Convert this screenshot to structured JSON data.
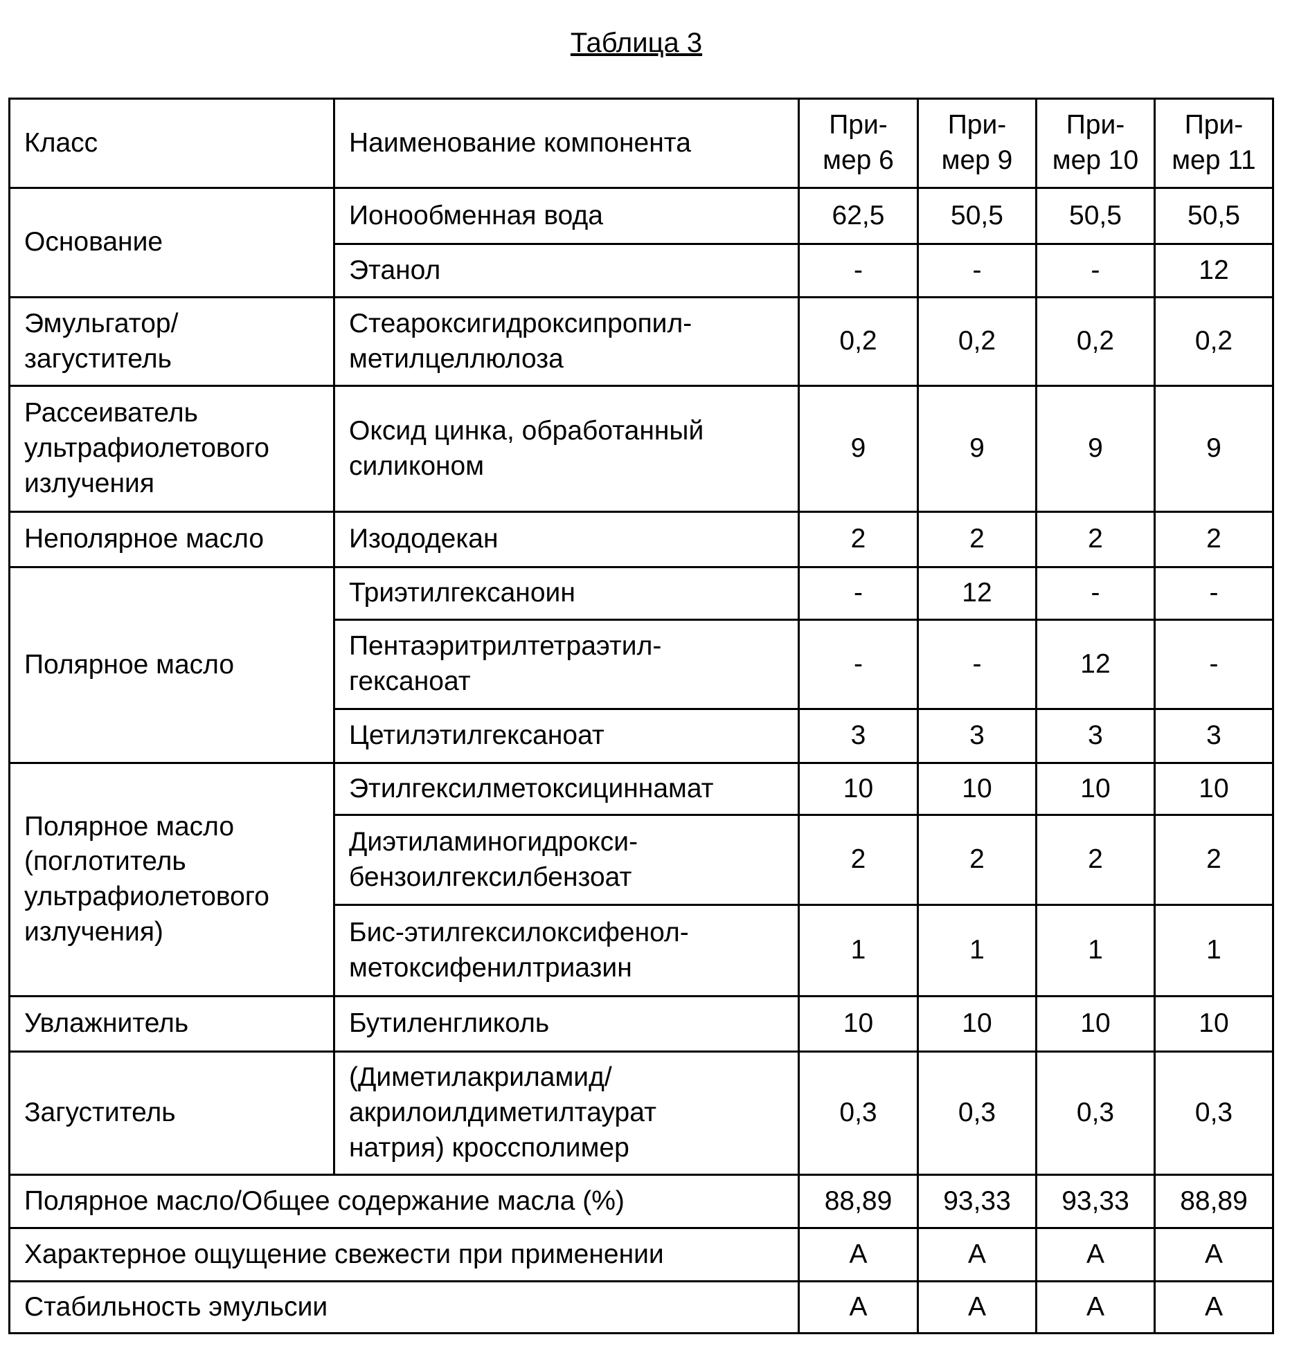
{
  "title": "Таблица 3",
  "header": {
    "class": "Класс",
    "component": "Наименование компонента",
    "examples": [
      "При-\nмер 6",
      "При-\nмер 9",
      "При-\nмер 10",
      "При-\nмер 11"
    ]
  },
  "groups": [
    {
      "class": "Основание",
      "rows": [
        {
          "name": "Ионообменная вода",
          "values": [
            "62,5",
            "50,5",
            "50,5",
            "50,5"
          ]
        },
        {
          "name": "Этанол",
          "values": [
            "-",
            "-",
            "-",
            "12"
          ]
        }
      ]
    },
    {
      "class": "Эмульгатор/\nзагуститель",
      "rows": [
        {
          "name": "Стеароксигидроксипропил-\nметилцеллюлоза",
          "values": [
            "0,2",
            "0,2",
            "0,2",
            "0,2"
          ]
        }
      ]
    },
    {
      "class": "Рассеиватель\nультрафиолетового\nизлучения",
      "rows": [
        {
          "name": "Оксид цинка, обработанный\nсиликоном",
          "values": [
            "9",
            "9",
            "9",
            "9"
          ]
        }
      ]
    },
    {
      "class": "Неполярное масло",
      "rows": [
        {
          "name": "Изододекан",
          "values": [
            "2",
            "2",
            "2",
            "2"
          ]
        }
      ]
    },
    {
      "class": "Полярное масло",
      "rows": [
        {
          "name": "Триэтилгексаноин",
          "values": [
            "-",
            "12",
            "-",
            "-"
          ]
        },
        {
          "name": "Пентаэритрилтетраэтил-\nгексаноат",
          "values": [
            "-",
            "-",
            "12",
            "-"
          ]
        },
        {
          "name": "Цетилэтилгексаноат",
          "values": [
            "3",
            "3",
            "3",
            "3"
          ]
        }
      ]
    },
    {
      "class": "Полярное масло\n(поглотитель\nультрафиолетового\nизлучения)",
      "rows": [
        {
          "name": "Этилгексилметоксициннамат",
          "values": [
            "10",
            "10",
            "10",
            "10"
          ]
        },
        {
          "name": "Диэтиламиногидрокси-\nбензоилгексилбензоат",
          "values": [
            "2",
            "2",
            "2",
            "2"
          ]
        },
        {
          "name": "Бис-этилгексилоксифенол-\nметоксифенилтриазин",
          "values": [
            "1",
            "1",
            "1",
            "1"
          ]
        }
      ]
    },
    {
      "class": "Увлажнитель",
      "rows": [
        {
          "name": "Бутиленгликоль",
          "values": [
            "10",
            "10",
            "10",
            "10"
          ]
        }
      ]
    },
    {
      "class": "Загуститель",
      "rows": [
        {
          "name": "(Диметилакриламид/\nакрилоилдиметилтаурат\nнатрия) кроссполимер",
          "values": [
            "0,3",
            "0,3",
            "0,3",
            "0,3"
          ]
        }
      ]
    }
  ],
  "summary": [
    {
      "label": "Полярное масло/Общее содержание масла (%)",
      "values": [
        "88,89",
        "93,33",
        "93,33",
        "88,89"
      ]
    },
    {
      "label": "Характерное ощущение свежести при применении",
      "values": [
        "A",
        "A",
        "A",
        "A"
      ]
    },
    {
      "label": "Стабильность эмульсии",
      "values": [
        "A",
        "A",
        "A",
        "A"
      ]
    }
  ]
}
